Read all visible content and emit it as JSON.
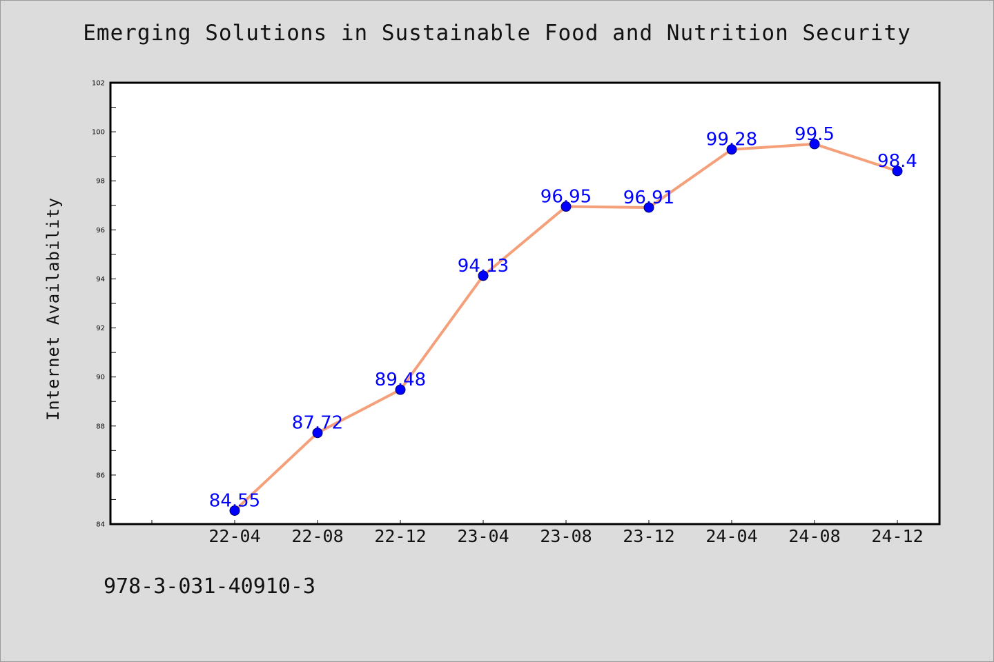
{
  "isbn_text": "978-3-031-40910-3",
  "colors": {
    "background": "#dcdcdc",
    "plot_background": "#ffffff",
    "line": "#f4a07a",
    "marker": "#0000ff",
    "data_label": "#0000ff"
  },
  "chart_data": {
    "type": "line",
    "title": "Emerging Solutions in Sustainable Food and Nutrition Security",
    "xlabel": "",
    "ylabel": "Internet Availability",
    "categories": [
      "22-04",
      "22-08",
      "22-12",
      "23-04",
      "23-08",
      "23-12",
      "24-04",
      "24-08",
      "24-12"
    ],
    "series": [
      {
        "values": [
          84.55,
          87.72,
          89.48,
          94.13,
          96.95,
          96.91,
          99.28,
          99.5,
          98.4
        ],
        "labels": [
          "84.55",
          "87.72",
          "89.48",
          "94.13",
          "96.95",
          "96.91",
          "99.28",
          "99.5",
          "98.4"
        ]
      }
    ],
    "ylim": [
      84,
      102
    ],
    "yticks": [
      84,
      86,
      88,
      90,
      92,
      94,
      96,
      98,
      100,
      102
    ],
    "grid": false,
    "legend": "none"
  }
}
